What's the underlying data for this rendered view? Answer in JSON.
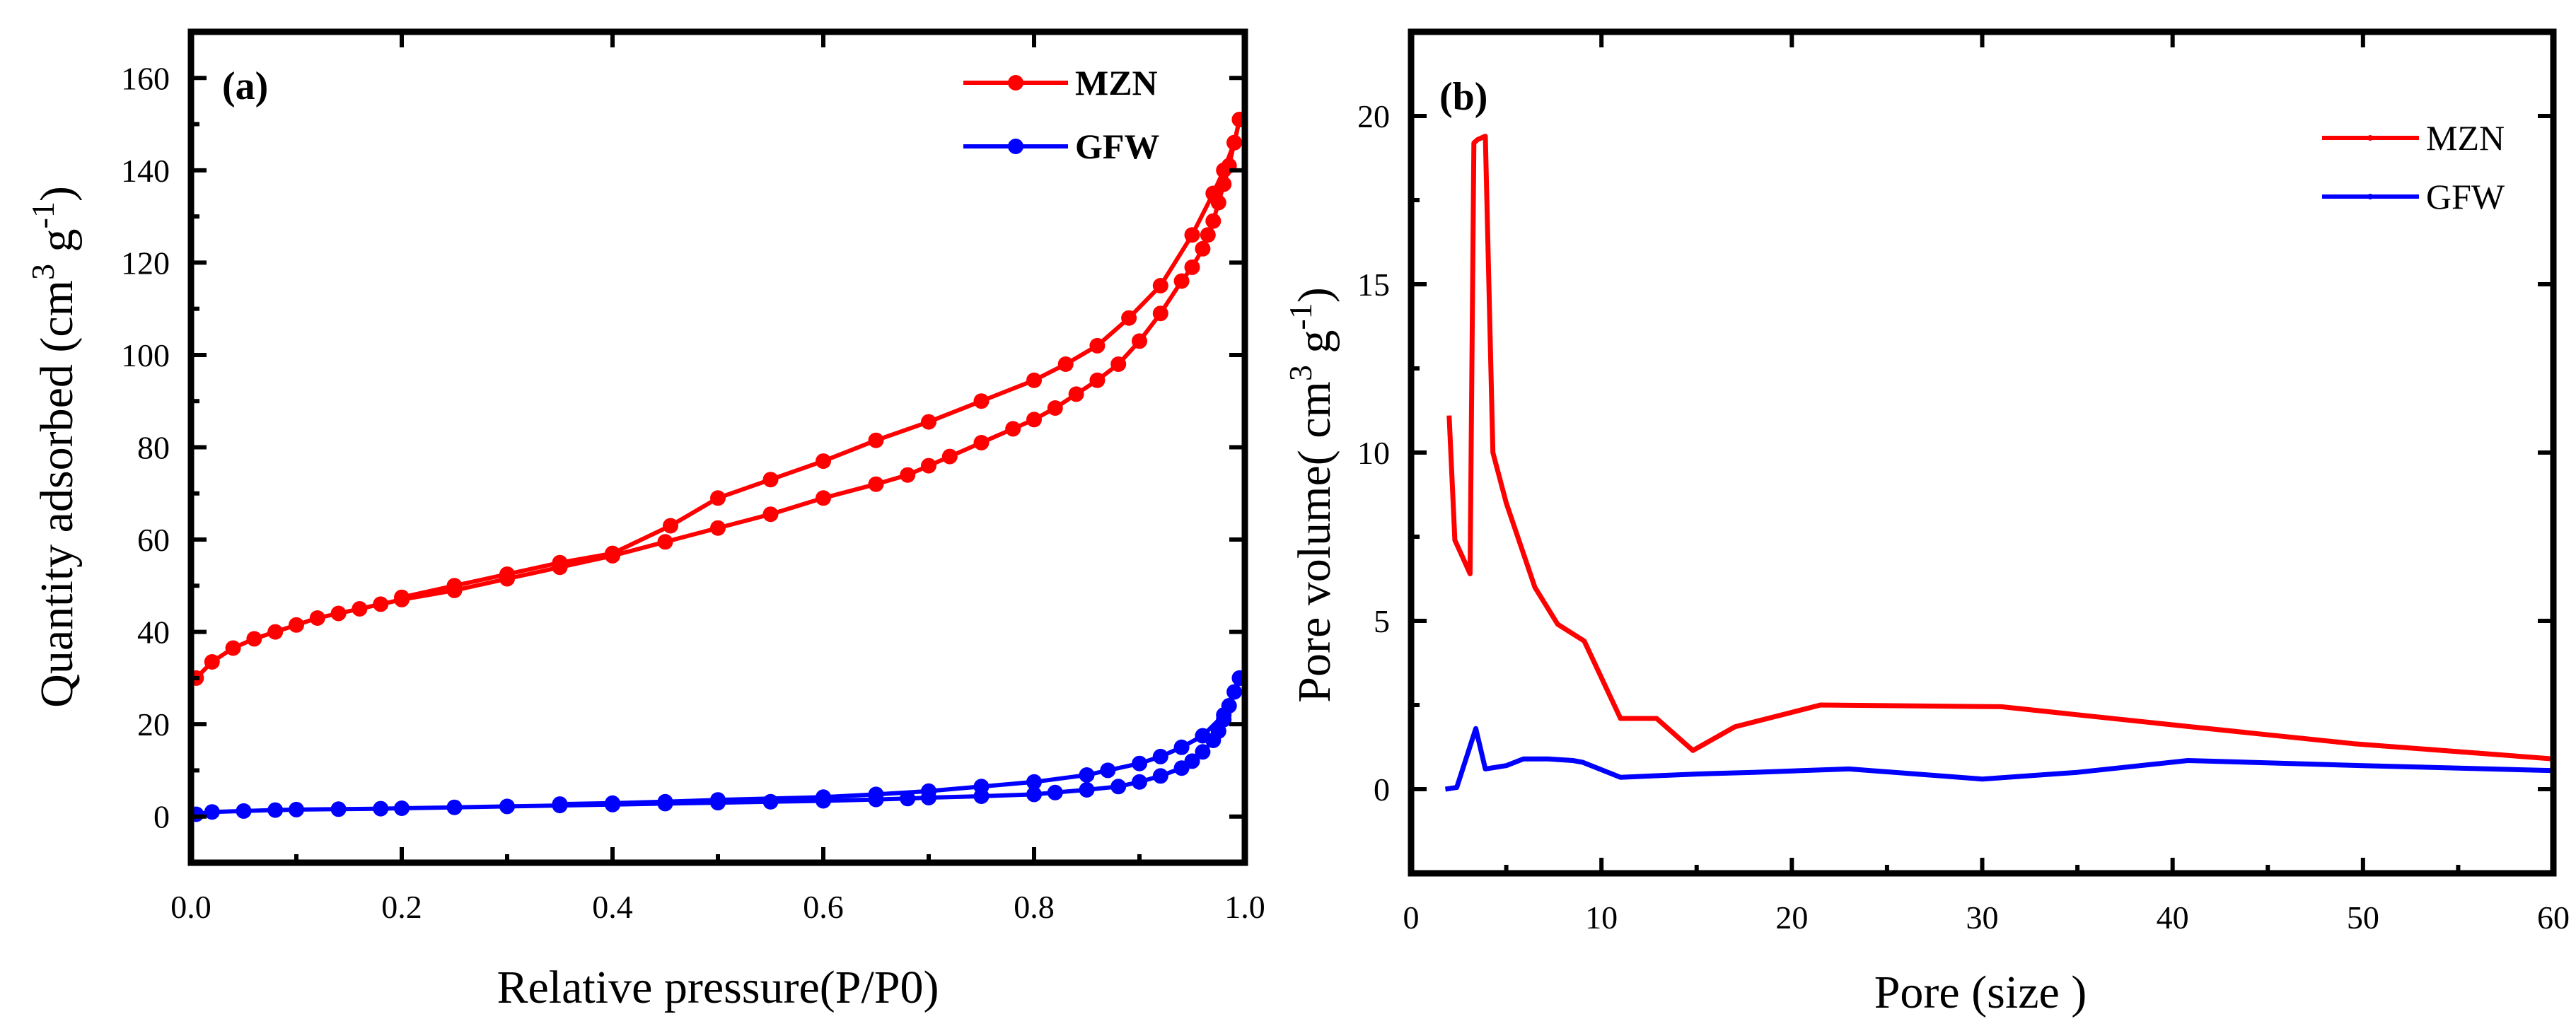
{
  "chart_data": [
    {
      "type": "scatter",
      "panel_label": "(a)",
      "xlabel": "Relative pressure(P/P0)",
      "ylabel_main": "Quantity adsorbed (cm",
      "ylabel_sup1": "3",
      "ylabel_mid": " g",
      "ylabel_sup2": "-1",
      "ylabel_end": ")",
      "xlim": [
        0,
        1.0
      ],
      "ylim": [
        -10,
        170
      ],
      "xticks": [
        0.0,
        0.2,
        0.4,
        0.6,
        0.8,
        1.0
      ],
      "xtick_labels": [
        "0.0",
        "0.2",
        "0.4",
        "0.6",
        "0.8",
        "1.0"
      ],
      "yticks": [
        0,
        20,
        40,
        60,
        80,
        100,
        120,
        140,
        160
      ],
      "ytick_labels": [
        "0",
        "20",
        "40",
        "60",
        "80",
        "100",
        "120",
        "140",
        "160"
      ],
      "legend_position": "top-right",
      "series": [
        {
          "name": "MZN",
          "color": "#ff0000",
          "adsorption": {
            "x": [
              0.005,
              0.02,
              0.04,
              0.06,
              0.08,
              0.1,
              0.12,
              0.14,
              0.16,
              0.18,
              0.2,
              0.25,
              0.3,
              0.35,
              0.4,
              0.45,
              0.5,
              0.55,
              0.6,
              0.65,
              0.68,
              0.7,
              0.72,
              0.75,
              0.78,
              0.8,
              0.82,
              0.84,
              0.86,
              0.88,
              0.9,
              0.92,
              0.94,
              0.95,
              0.96,
              0.965,
              0.97,
              0.975,
              0.98,
              0.985,
              0.99,
              0.995
            ],
            "y": [
              30,
              33.5,
              36.5,
              38.5,
              40,
              41.5,
              43,
              44,
              45,
              46,
              47,
              49,
              51.5,
              54,
              56.5,
              59.5,
              62.5,
              65.5,
              69,
              72,
              74,
              76,
              78,
              81,
              84,
              86,
              88.5,
              91.5,
              94.5,
              98,
              103,
              109,
              116,
              119,
              123,
              126,
              129,
              133,
              137,
              141,
              146,
              151
            ]
          },
          "desorption": {
            "x": [
              0.995,
              0.99,
              0.98,
              0.97,
              0.95,
              0.92,
              0.89,
              0.86,
              0.83,
              0.8,
              0.75,
              0.7,
              0.65,
              0.6,
              0.55,
              0.5,
              0.455,
              0.4,
              0.35,
              0.3,
              0.25,
              0.2
            ],
            "y": [
              151,
              146,
              140,
              135,
              126,
              115,
              108,
              102,
              98,
              94.5,
              90,
              85.5,
              81.5,
              77,
              73,
              69,
              63,
              57,
              55,
              52.5,
              50,
              47.5
            ]
          }
        },
        {
          "name": "GFW",
          "color": "#0000ff",
          "adsorption": {
            "x": [
              0.005,
              0.02,
              0.05,
              0.08,
              0.1,
              0.14,
              0.18,
              0.2,
              0.25,
              0.3,
              0.35,
              0.4,
              0.45,
              0.5,
              0.55,
              0.6,
              0.65,
              0.68,
              0.7,
              0.75,
              0.8,
              0.82,
              0.85,
              0.88,
              0.9,
              0.92,
              0.94,
              0.95,
              0.96,
              0.97,
              0.975,
              0.98,
              0.985,
              0.99,
              0.995
            ],
            "y": [
              0.5,
              1,
              1.2,
              1.4,
              1.5,
              1.6,
              1.7,
              1.8,
              2.0,
              2.2,
              2.4,
              2.6,
              2.8,
              3.0,
              3.2,
              3.4,
              3.7,
              3.9,
              4.1,
              4.4,
              4.8,
              5.2,
              5.8,
              6.5,
              7.5,
              8.8,
              10.5,
              12,
              14,
              16.5,
              18.5,
              21,
              24,
              27,
              30
            ]
          },
          "desorption": {
            "x": [
              0.995,
              0.98,
              0.96,
              0.94,
              0.92,
              0.9,
              0.87,
              0.85,
              0.8,
              0.75,
              0.7,
              0.65,
              0.6,
              0.5,
              0.45,
              0.4,
              0.35
            ],
            "y": [
              30,
              22,
              17.5,
              15,
              13,
              11.5,
              10,
              9,
              7.5,
              6.5,
              5.5,
              4.8,
              4.2,
              3.6,
              3.2,
              2.9,
              2.7
            ]
          }
        }
      ]
    },
    {
      "type": "line",
      "panel_label": "(b)",
      "xlabel": "Pore (size )",
      "ylabel_main": "Pore volume( cm",
      "ylabel_sup1": "3",
      "ylabel_mid": " g",
      "ylabel_sup2": "-1",
      "ylabel_end": ")",
      "xlim": [
        0,
        60
      ],
      "ylim": [
        -2.5,
        22.5
      ],
      "xticks": [
        0,
        10,
        20,
        30,
        40,
        50,
        60
      ],
      "xtick_labels": [
        "0",
        "10",
        "20",
        "30",
        "40",
        "50",
        "60"
      ],
      "yticks": [
        0,
        5,
        10,
        15,
        20
      ],
      "ytick_labels": [
        "0",
        "5",
        "10",
        "15",
        "20"
      ],
      "legend_position": "top-right",
      "series": [
        {
          "name": "MZN",
          "color": "#ff0000",
          "x": [
            2.0,
            2.3,
            2.7,
            3.1,
            3.3,
            3.5,
            3.9,
            4.3,
            5.0,
            6.5,
            7.7,
            9.1,
            11.0,
            12.9,
            14.8,
            17.0,
            21.5,
            31.0,
            41.0,
            49.5,
            60.0
          ],
          "y": [
            11.1,
            7.4,
            6.9,
            6.4,
            19.2,
            19.3,
            19.4,
            10.0,
            8.5,
            6.0,
            4.9,
            4.4,
            2.1,
            2.1,
            1.15,
            1.85,
            2.5,
            2.45,
            1.85,
            1.35,
            0.9
          ]
        },
        {
          "name": "GFW",
          "color": "#0000ff",
          "x": [
            1.8,
            2.4,
            3.4,
            3.9,
            5.0,
            5.9,
            7.2,
            8.5,
            9.0,
            11.0,
            12.9,
            15.0,
            18.0,
            23.0,
            30.0,
            35.0,
            40.8,
            50.0,
            60.0
          ],
          "y": [
            0.0,
            0.05,
            1.8,
            0.6,
            0.7,
            0.9,
            0.9,
            0.85,
            0.8,
            0.35,
            0.4,
            0.45,
            0.5,
            0.6,
            0.3,
            0.5,
            0.85,
            0.7,
            0.55
          ]
        }
      ]
    }
  ]
}
